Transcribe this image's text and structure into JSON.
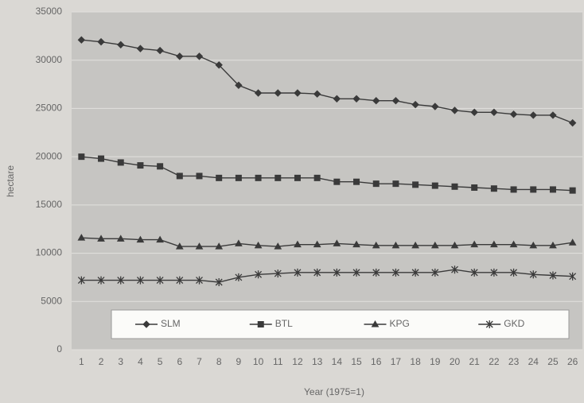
{
  "chart_data": {
    "type": "line",
    "x_label": "Year (1975=1)",
    "y_label": "hectare",
    "categories": [
      "1",
      "2",
      "3",
      "4",
      "5",
      "6",
      "7",
      "8",
      "9",
      "10",
      "11",
      "12",
      "13",
      "14",
      "15",
      "16",
      "17",
      "18",
      "19",
      "20",
      "21",
      "22",
      "23",
      "24",
      "25",
      "26"
    ],
    "series": [
      {
        "name": "SLM",
        "color": "#3a3a3a",
        "marker": "diamond",
        "values": [
          32100,
          31900,
          31600,
          31200,
          31000,
          30400,
          30400,
          29500,
          27400,
          26600,
          26600,
          26600,
          26500,
          26000,
          26000,
          25800,
          25800,
          25400,
          25200,
          24800,
          24600,
          24600,
          24400,
          24300,
          24300,
          23500
        ]
      },
      {
        "name": "BTL",
        "color": "#3a3a3a",
        "marker": "square",
        "values": [
          20000,
          19800,
          19400,
          19100,
          19000,
          18000,
          18000,
          17800,
          17800,
          17800,
          17800,
          17800,
          17800,
          17400,
          17400,
          17200,
          17200,
          17100,
          17000,
          16900,
          16800,
          16700,
          16600,
          16600,
          16600,
          16500
        ]
      },
      {
        "name": "KPG",
        "color": "#3a3a3a",
        "marker": "triangle",
        "values": [
          11600,
          11500,
          11500,
          11400,
          11400,
          10700,
          10700,
          10700,
          11000,
          10800,
          10700,
          10900,
          10900,
          11000,
          10900,
          10800,
          10800,
          10800,
          10800,
          10800,
          10900,
          10900,
          10900,
          10800,
          10800,
          11100
        ]
      },
      {
        "name": "GKD",
        "color": "#3a3a3a",
        "marker": "star",
        "values": [
          7200,
          7200,
          7200,
          7200,
          7200,
          7200,
          7200,
          7000,
          7500,
          7800,
          7900,
          8000,
          8000,
          8000,
          8000,
          8000,
          8000,
          8000,
          8000,
          8300,
          8000,
          8000,
          8000,
          7800,
          7700,
          7600
        ]
      }
    ],
    "ylim": [
      0,
      35000
    ],
    "yticks": [
      0,
      5000,
      10000,
      15000,
      20000,
      25000,
      30000,
      35000
    ],
    "grid": true,
    "legend": "bottom"
  }
}
